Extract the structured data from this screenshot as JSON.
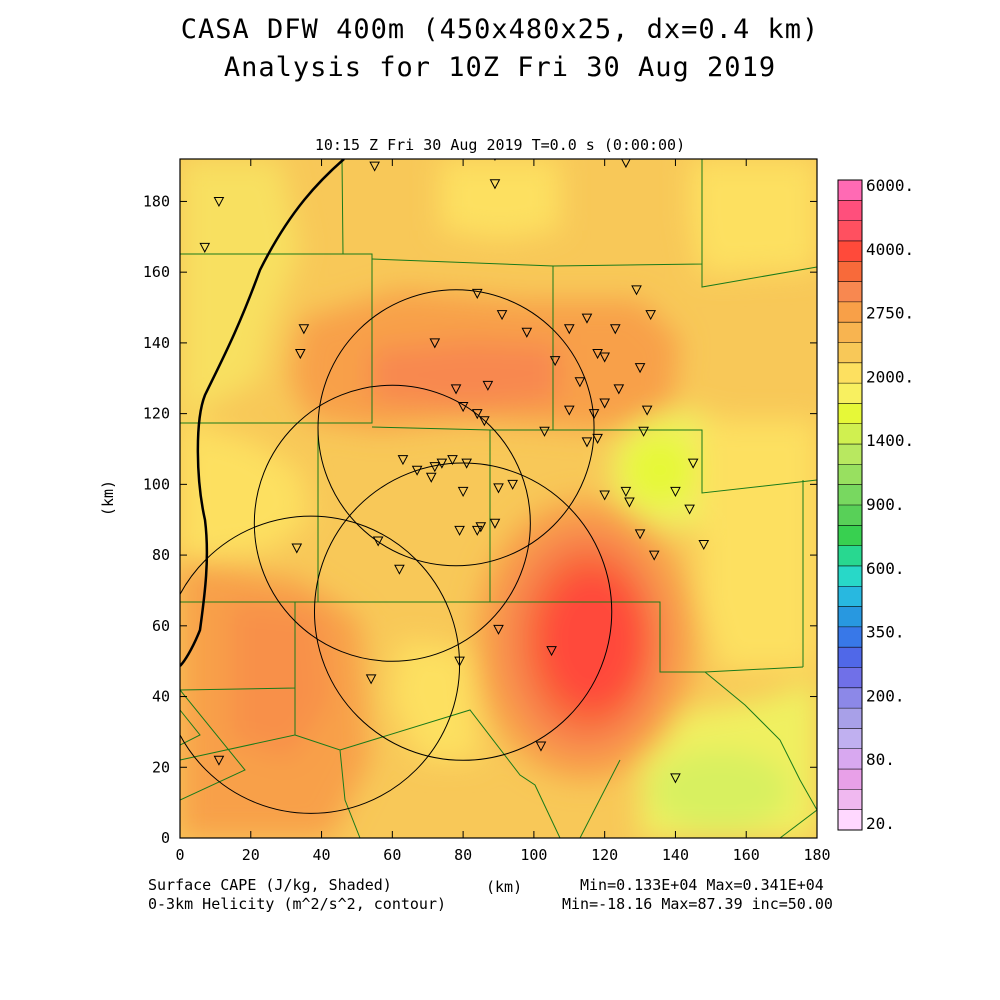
{
  "title": {
    "line1": "CASA DFW 400m (450x480x25, dx=0.4 km)",
    "line2": "Analysis for 10Z Fri 30 Aug 2019"
  },
  "subtitle": "10:15 Z Fri 30 Aug 2019    T=0.0 s (0:00:00)",
  "axes": {
    "x_label": "(km)",
    "y_label": "(km)",
    "x_ticks": [
      "0",
      "20",
      "40",
      "60",
      "80",
      "100",
      "120",
      "140",
      "160",
      "180"
    ],
    "y_ticks": [
      "0",
      "20",
      "40",
      "60",
      "80",
      "100",
      "120",
      "140",
      "160",
      "180"
    ],
    "x_range": [
      0,
      180
    ],
    "y_range": [
      0,
      192
    ]
  },
  "footer": {
    "left1": "Surface CAPE (J/kg, Shaded)",
    "left2": "0-3km Helicity (m^2/s^2, contour)",
    "center": "(km)",
    "right1": "Min=0.133E+04 Max=0.341E+04",
    "right2": "Min=-18.16 Max=87.39 inc=50.00"
  },
  "colorbar": {
    "labels": [
      "6000.",
      "4000.",
      "2750.",
      "2000.",
      "1400.",
      "900.",
      "600.",
      "350.",
      "200.",
      "80.",
      "20."
    ],
    "colors": [
      "#ff6ab4",
      "#ff4f7c",
      "#ff5060",
      "#ff4a3a",
      "#f86a3a",
      "#f88850",
      "#f8a048",
      "#f8b450",
      "#f8c858",
      "#fde060",
      "#f8f060",
      "#e6f838",
      "#d0f050",
      "#b8e860",
      "#98e060",
      "#78d860",
      "#58d058",
      "#38d050",
      "#28d890",
      "#28d8c8",
      "#28b8e0",
      "#2898e0",
      "#3878e8",
      "#5068e8",
      "#7070e8",
      "#8c88e8",
      "#a8a0e8",
      "#c0b0f0",
      "#d8a8f0",
      "#e8a0e8",
      "#f0b8f0",
      "#ffd8ff"
    ]
  },
  "chart_data": {
    "type": "heatmap",
    "field": "Surface CAPE (J/kg)",
    "min": 1330,
    "max": 3410,
    "helicity_min": -18.16,
    "helicity_max": 87.39,
    "helicity_inc": 50.0,
    "circles_km": [
      {
        "cx": 78,
        "cy": 116,
        "r": 39
      },
      {
        "cx": 60,
        "cy": 89,
        "r": 39
      },
      {
        "cx": 80,
        "cy": 64,
        "r": 42
      },
      {
        "cx": 37,
        "cy": 49,
        "r": 42
      }
    ],
    "stations_km": [
      [
        11,
        180
      ],
      [
        7,
        167
      ],
      [
        55,
        190
      ],
      [
        89,
        193
      ],
      [
        89,
        185
      ],
      [
        126,
        191
      ],
      [
        35,
        144
      ],
      [
        34,
        137
      ],
      [
        72,
        140
      ],
      [
        84,
        154
      ],
      [
        91,
        148
      ],
      [
        98,
        143
      ],
      [
        110,
        144
      ],
      [
        115,
        147
      ],
      [
        123,
        144
      ],
      [
        129,
        155
      ],
      [
        133,
        148
      ],
      [
        118,
        137
      ],
      [
        120,
        136
      ],
      [
        124,
        127
      ],
      [
        130,
        133
      ],
      [
        113,
        129
      ],
      [
        106,
        135
      ],
      [
        87,
        128
      ],
      [
        78,
        127
      ],
      [
        80,
        122
      ],
      [
        84,
        120
      ],
      [
        86,
        118
      ],
      [
        110,
        121
      ],
      [
        117,
        120
      ],
      [
        120,
        123
      ],
      [
        132,
        121
      ],
      [
        131,
        115
      ],
      [
        103,
        115
      ],
      [
        115,
        112
      ],
      [
        118,
        113
      ],
      [
        63,
        107
      ],
      [
        67,
        104
      ],
      [
        71,
        102
      ],
      [
        72,
        105
      ],
      [
        74,
        106
      ],
      [
        77,
        107
      ],
      [
        81,
        106
      ],
      [
        80,
        98
      ],
      [
        90,
        99
      ],
      [
        94,
        100
      ],
      [
        120,
        97
      ],
      [
        126,
        98
      ],
      [
        127,
        95
      ],
      [
        140,
        98
      ],
      [
        144,
        93
      ],
      [
        145,
        106
      ],
      [
        148,
        83
      ],
      [
        130,
        86
      ],
      [
        134,
        80
      ],
      [
        89,
        89
      ],
      [
        85,
        88
      ],
      [
        84,
        87
      ],
      [
        79,
        87
      ],
      [
        56,
        84
      ],
      [
        62,
        76
      ],
      [
        33,
        82
      ],
      [
        90,
        59
      ],
      [
        105,
        53
      ],
      [
        79,
        50
      ],
      [
        54,
        45
      ],
      [
        102,
        26
      ],
      [
        140,
        17
      ],
      [
        11,
        22
      ]
    ]
  }
}
